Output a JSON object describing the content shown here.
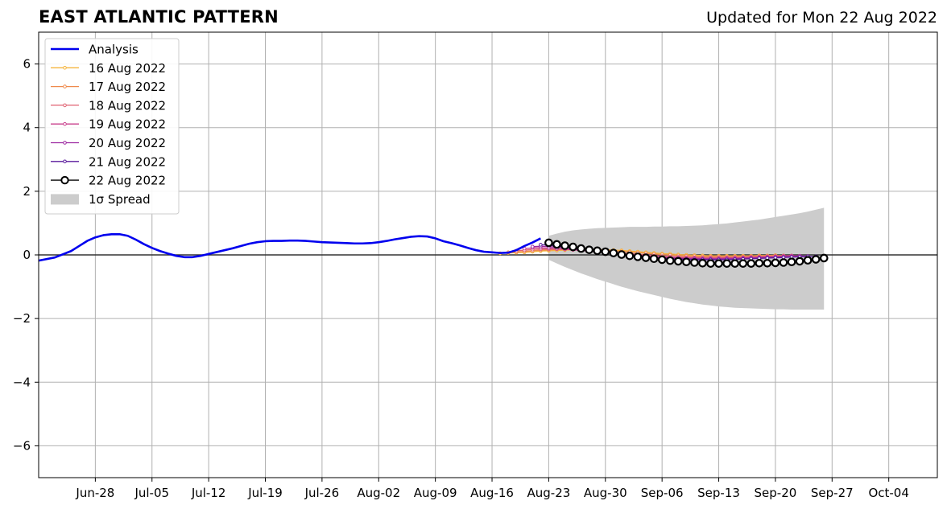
{
  "title": "EAST ATLANTIC PATTERN",
  "subtitle": "Updated for Mon 22 Aug 2022",
  "chart_data": {
    "type": "line",
    "title": "EAST ATLANTIC PATTERN",
    "subtitle": "Updated for Mon 22 Aug 2022",
    "xlabel": "",
    "ylabel": "",
    "grid": true,
    "legend_position": "top-left",
    "xlim": [
      "2022-06-21",
      "2022-10-10"
    ],
    "ylim": [
      -7,
      7
    ],
    "x_ticks": [
      "Jun-28",
      "Jul-05",
      "Jul-12",
      "Jul-19",
      "Jul-26",
      "Aug-02",
      "Aug-09",
      "Aug-16",
      "Aug-23",
      "Aug-30",
      "Sep-06",
      "Sep-13",
      "Sep-20",
      "Sep-27",
      "Oct-04"
    ],
    "x_tick_dates": [
      "2022-06-28",
      "2022-07-05",
      "2022-07-12",
      "2022-07-19",
      "2022-07-26",
      "2022-08-02",
      "2022-08-09",
      "2022-08-16",
      "2022-08-23",
      "2022-08-30",
      "2022-09-06",
      "2022-09-13",
      "2022-09-20",
      "2022-09-27",
      "2022-10-04"
    ],
    "y_ticks": [
      -6,
      -4,
      -2,
      0,
      2,
      4,
      6
    ],
    "y_tick_labels": [
      "−6",
      "−4",
      "−2",
      "0",
      "2",
      "4",
      "6"
    ],
    "analysis": {
      "name": "Analysis",
      "color": "#0000ee",
      "points": [
        [
          "2022-06-21",
          -0.18
        ],
        [
          "2022-06-23",
          -0.08
        ],
        [
          "2022-06-25",
          0.12
        ],
        [
          "2022-06-26",
          0.28
        ],
        [
          "2022-06-27",
          0.44
        ],
        [
          "2022-06-28",
          0.55
        ],
        [
          "2022-06-29",
          0.62
        ],
        [
          "2022-06-30",
          0.65
        ],
        [
          "2022-07-01",
          0.65
        ],
        [
          "2022-07-02",
          0.6
        ],
        [
          "2022-07-03",
          0.48
        ],
        [
          "2022-07-04",
          0.34
        ],
        [
          "2022-07-05",
          0.22
        ],
        [
          "2022-07-06",
          0.12
        ],
        [
          "2022-07-07",
          0.04
        ],
        [
          "2022-07-08",
          -0.03
        ],
        [
          "2022-07-09",
          -0.07
        ],
        [
          "2022-07-10",
          -0.07
        ],
        [
          "2022-07-11",
          -0.03
        ],
        [
          "2022-07-12",
          0.03
        ],
        [
          "2022-07-13",
          0.09
        ],
        [
          "2022-07-14",
          0.15
        ],
        [
          "2022-07-15",
          0.21
        ],
        [
          "2022-07-16",
          0.28
        ],
        [
          "2022-07-17",
          0.35
        ],
        [
          "2022-07-18",
          0.4
        ],
        [
          "2022-07-19",
          0.43
        ],
        [
          "2022-07-20",
          0.44
        ],
        [
          "2022-07-21",
          0.44
        ],
        [
          "2022-07-22",
          0.45
        ],
        [
          "2022-07-23",
          0.45
        ],
        [
          "2022-07-24",
          0.44
        ],
        [
          "2022-07-25",
          0.42
        ],
        [
          "2022-07-26",
          0.4
        ],
        [
          "2022-07-27",
          0.39
        ],
        [
          "2022-07-28",
          0.38
        ],
        [
          "2022-07-29",
          0.37
        ],
        [
          "2022-07-30",
          0.36
        ],
        [
          "2022-07-31",
          0.36
        ],
        [
          "2022-08-01",
          0.37
        ],
        [
          "2022-08-02",
          0.4
        ],
        [
          "2022-08-03",
          0.44
        ],
        [
          "2022-08-04",
          0.49
        ],
        [
          "2022-08-05",
          0.53
        ],
        [
          "2022-08-06",
          0.57
        ],
        [
          "2022-08-07",
          0.59
        ],
        [
          "2022-08-08",
          0.58
        ],
        [
          "2022-08-09",
          0.52
        ],
        [
          "2022-08-10",
          0.43
        ],
        [
          "2022-08-11",
          0.37
        ],
        [
          "2022-08-12",
          0.3
        ],
        [
          "2022-08-13",
          0.22
        ],
        [
          "2022-08-14",
          0.15
        ],
        [
          "2022-08-15",
          0.1
        ],
        [
          "2022-08-16",
          0.08
        ],
        [
          "2022-08-17",
          0.06
        ],
        [
          "2022-08-18",
          0.07
        ],
        [
          "2022-08-19",
          0.15
        ],
        [
          "2022-08-20",
          0.28
        ],
        [
          "2022-08-21",
          0.39
        ],
        [
          "2022-08-22",
          0.52
        ]
      ]
    },
    "forecast_series": [
      {
        "name": "16 Aug 2022",
        "color": "#f5b43c",
        "start": "2022-08-17",
        "values": [
          0.05,
          0.06,
          0.07,
          0.08,
          0.1,
          0.12,
          0.13,
          0.14,
          0.15,
          0.16,
          0.17,
          0.17,
          0.17,
          0.16,
          0.15,
          0.14,
          0.12,
          0.1,
          0.08,
          0.06,
          0.04,
          0.03,
          0.01,
          0.0,
          -0.01,
          -0.02,
          -0.03,
          -0.03,
          -0.03,
          -0.03,
          -0.03,
          -0.03,
          -0.02,
          -0.02,
          -0.01
        ]
      },
      {
        "name": "17 Aug 2022",
        "color": "#ef8a4d",
        "start": "2022-08-18",
        "values": [
          0.08,
          0.09,
          0.11,
          0.13,
          0.15,
          0.16,
          0.17,
          0.18,
          0.18,
          0.18,
          0.17,
          0.16,
          0.15,
          0.13,
          0.11,
          0.09,
          0.07,
          0.05,
          0.03,
          0.01,
          0.0,
          -0.02,
          -0.03,
          -0.04,
          -0.05,
          -0.05,
          -0.05,
          -0.05,
          -0.05,
          -0.05,
          -0.04,
          -0.04,
          -0.03,
          -0.02,
          -0.02
        ]
      },
      {
        "name": "18 Aug 2022",
        "color": "#e06272",
        "start": "2022-08-19",
        "values": [
          0.13,
          0.15,
          0.17,
          0.18,
          0.18,
          0.18,
          0.17,
          0.16,
          0.15,
          0.13,
          0.12,
          0.1,
          0.08,
          0.06,
          0.04,
          0.02,
          0.0,
          -0.02,
          -0.04,
          -0.05,
          -0.06,
          -0.07,
          -0.08,
          -0.08,
          -0.08,
          -0.08,
          -0.08,
          -0.07,
          -0.07,
          -0.06,
          -0.05,
          -0.04,
          -0.04,
          -0.03,
          -0.02
        ]
      },
      {
        "name": "19 Aug 2022",
        "color": "#c83f8c",
        "start": "2022-08-20",
        "values": [
          0.2,
          0.22,
          0.22,
          0.21,
          0.2,
          0.18,
          0.16,
          0.14,
          0.12,
          0.1,
          0.08,
          0.06,
          0.03,
          0.01,
          -0.01,
          -0.03,
          -0.05,
          -0.07,
          -0.08,
          -0.09,
          -0.1,
          -0.1,
          -0.11,
          -0.11,
          -0.11,
          -0.1,
          -0.1,
          -0.09,
          -0.08,
          -0.07,
          -0.06,
          -0.05,
          -0.04,
          -0.03,
          -0.03
        ]
      },
      {
        "name": "20 Aug 2022",
        "color": "#9c27a0",
        "start": "2022-08-21",
        "values": [
          0.26,
          0.27,
          0.26,
          0.24,
          0.22,
          0.19,
          0.16,
          0.13,
          0.1,
          0.08,
          0.05,
          0.02,
          -0.01,
          -0.03,
          -0.05,
          -0.07,
          -0.09,
          -0.1,
          -0.11,
          -0.12,
          -0.12,
          -0.13,
          -0.13,
          -0.13,
          -0.12,
          -0.12,
          -0.11,
          -0.1,
          -0.09,
          -0.08,
          -0.07,
          -0.06,
          -0.05,
          -0.04,
          -0.04
        ]
      },
      {
        "name": "21 Aug 2022",
        "color": "#5a1a9c",
        "start": "2022-08-22",
        "values": [
          0.32,
          0.31,
          0.28,
          0.25,
          0.21,
          0.18,
          0.14,
          0.11,
          0.08,
          0.05,
          0.02,
          -0.01,
          -0.04,
          -0.06,
          -0.08,
          -0.1,
          -0.12,
          -0.13,
          -0.14,
          -0.15,
          -0.15,
          -0.15,
          -0.15,
          -0.15,
          -0.14,
          -0.13,
          -0.12,
          -0.11,
          -0.1,
          -0.09,
          -0.08,
          -0.07,
          -0.06,
          -0.05,
          -0.05
        ]
      },
      {
        "name": "22 Aug 2022",
        "color": "#000000",
        "start": "2022-08-23",
        "values": [
          0.38,
          0.33,
          0.29,
          0.25,
          0.2,
          0.16,
          0.13,
          0.1,
          0.06,
          0.01,
          -0.03,
          -0.06,
          -0.09,
          -0.12,
          -0.15,
          -0.18,
          -0.2,
          -0.22,
          -0.24,
          -0.26,
          -0.27,
          -0.27,
          -0.27,
          -0.27,
          -0.27,
          -0.27,
          -0.26,
          -0.26,
          -0.25,
          -0.24,
          -0.22,
          -0.2,
          -0.17,
          -0.14,
          -0.1
        ]
      }
    ],
    "spread": {
      "name": "1σ Spread",
      "color": "#cccccc",
      "start": "2022-08-23",
      "upper": [
        0.6,
        0.67,
        0.73,
        0.77,
        0.8,
        0.82,
        0.84,
        0.85,
        0.86,
        0.87,
        0.88,
        0.88,
        0.88,
        0.89,
        0.89,
        0.9,
        0.9,
        0.91,
        0.92,
        0.93,
        0.95,
        0.97,
        0.99,
        1.02,
        1.05,
        1.08,
        1.11,
        1.15,
        1.19,
        1.23,
        1.27,
        1.31,
        1.36,
        1.42,
        1.48
      ],
      "lower": [
        -0.15,
        -0.27,
        -0.38,
        -0.48,
        -0.58,
        -0.67,
        -0.76,
        -0.84,
        -0.92,
        -1.0,
        -1.07,
        -1.14,
        -1.2,
        -1.26,
        -1.32,
        -1.38,
        -1.43,
        -1.48,
        -1.52,
        -1.56,
        -1.59,
        -1.62,
        -1.64,
        -1.66,
        -1.67,
        -1.68,
        -1.69,
        -1.7,
        -1.71,
        -1.71,
        -1.72,
        -1.72,
        -1.72,
        -1.72,
        -1.72
      ]
    }
  }
}
